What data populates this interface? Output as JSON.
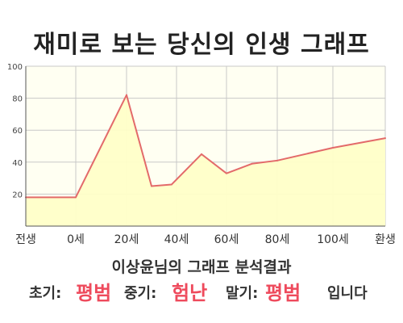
{
  "page": {
    "title": "재미로 보는 당신의 인생 그래프",
    "summary": "이상윤님의 그래프 분석결과",
    "result": {
      "early_label": "초기:",
      "early_value": "평범",
      "mid_label": "중기:",
      "mid_value": "험난",
      "late_label": "말기:",
      "late_value": "평범",
      "ending": "입니다"
    }
  },
  "chart_data": {
    "type": "area",
    "title": "",
    "xlabel": "",
    "ylabel": "",
    "ylim": [
      0,
      100
    ],
    "yticks": [
      20,
      40,
      60,
      80,
      100
    ],
    "xticks": [
      "전생",
      "0세",
      "20세",
      "40세",
      "60세",
      "80세",
      "100세",
      "환생"
    ],
    "grid": true,
    "colors": {
      "line": "#e36a6a",
      "fill": "#ffffc8",
      "plot_bg": "#fffff2",
      "grid": "#c8c8c8"
    },
    "series": [
      {
        "points": [
          [
            "전생",
            18
          ],
          [
            "0세",
            18
          ],
          [
            "20세",
            82
          ],
          [
            "30세",
            25
          ],
          [
            "38세",
            26
          ],
          [
            "50세",
            45
          ],
          [
            "60세",
            33
          ],
          [
            "70세",
            39
          ],
          [
            "80세",
            41
          ],
          [
            "100세",
            49
          ],
          [
            "환생",
            55
          ]
        ]
      }
    ]
  }
}
